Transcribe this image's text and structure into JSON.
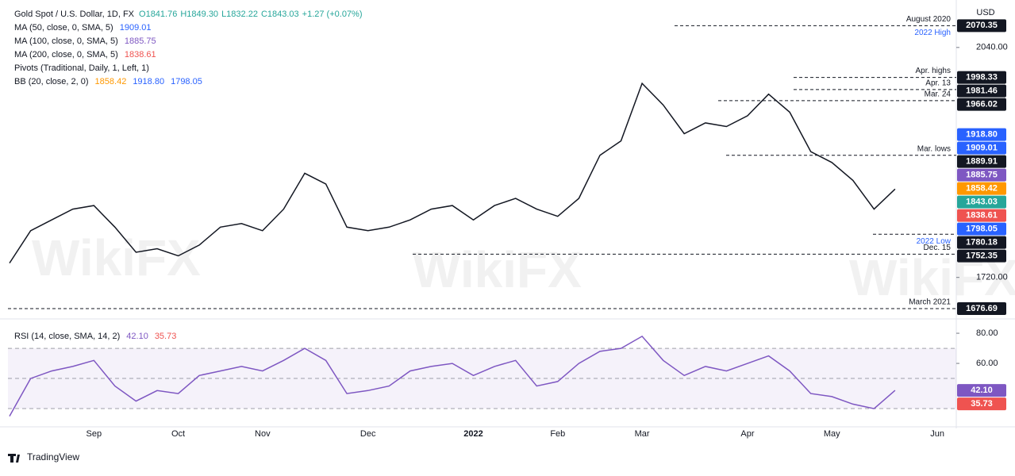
{
  "header": {
    "symbol": "Gold Spot / U.S. Dollar, 1D, FX",
    "ohlc": [
      "O1841.76",
      "H1849.30",
      "L1832.22",
      "C1843.03",
      "+1.27 (+0.07%)"
    ],
    "studies": [
      {
        "name": "MA (50, close, 0, SMA, 5)",
        "vals": [
          "1909.01"
        ],
        "colors": [
          "#2962ff"
        ]
      },
      {
        "name": "MA (100, close, 0, SMA, 5)",
        "vals": [
          "1885.75"
        ],
        "colors": [
          "#7e57c2"
        ]
      },
      {
        "name": "MA (200, close, 0, SMA, 5)",
        "vals": [
          "1838.61"
        ],
        "colors": [
          "#ef5350"
        ]
      },
      {
        "name": "Pivots (Traditional, Daily, 1, Left, 1)",
        "vals": [],
        "colors": []
      },
      {
        "name": "BB (20, close, 2, 0)",
        "vals": [
          "1858.42",
          "1918.80",
          "1798.05"
        ],
        "colors": [
          "#ff9800",
          "#2962ff",
          "#2962ff"
        ]
      }
    ],
    "currency": "USD",
    "footer": "TradingView",
    "watermarks": [
      "WikiFX",
      "WikiFX",
      "WikiFX"
    ]
  },
  "chart_data": [
    {
      "type": "line",
      "color": "#131722",
      "categories": [
        null,
        null,
        null,
        null,
        "Sep",
        null,
        null,
        null,
        "Oct",
        null,
        null,
        null,
        "Nov",
        null,
        null,
        null,
        null,
        "Dec",
        null,
        null,
        null,
        null,
        "2022",
        null,
        null,
        null,
        "Feb",
        null,
        null,
        null,
        "Mar",
        null,
        null,
        null,
        null,
        "Apr",
        null,
        null,
        null,
        "May",
        null,
        null,
        null,
        null,
        "Jun"
      ],
      "values": [
        1740,
        1785,
        1800,
        1815,
        1820,
        1790,
        1755,
        1760,
        1750,
        1765,
        1790,
        1795,
        1785,
        1815,
        1865,
        1850,
        1790,
        1785,
        1790,
        1800,
        1815,
        1820,
        1800,
        1820,
        1830,
        1815,
        1805,
        1830,
        1890,
        1910,
        1990,
        1960,
        1920,
        1935,
        1930,
        1945,
        1975,
        1950,
        1895,
        1880,
        1855,
        1815,
        1843.03,
        null,
        null
      ],
      "ylim": [
        1670,
        2095
      ],
      "yticks": [
        {
          "value": 2040,
          "label": "2040.00"
        },
        {
          "value": 1720,
          "label": "1720.00"
        }
      ],
      "levels": [
        {
          "value": 2070.35,
          "notes": [
            "August 2020",
            "2022 High"
          ]
        },
        {
          "value": 1998.33,
          "notes": [
            "Apr. highs"
          ]
        },
        {
          "value": 1981.46,
          "notes": [
            "Apr. 13"
          ]
        },
        {
          "value": 1966.02,
          "notes": [
            "Mar. 24"
          ]
        },
        {
          "value": 1889.91,
          "notes": [
            "Mar. lows"
          ]
        },
        {
          "value": 1780.18,
          "notes": [
            "2022 Low"
          ]
        },
        {
          "value": 1752.35,
          "notes": [
            "Dec. 15"
          ]
        },
        {
          "value": 1676.69,
          "notes": [
            "March 2021"
          ]
        }
      ],
      "axis_labels": [
        {
          "value": 1918.8,
          "label": "1918.80",
          "color": "#2962ff"
        },
        {
          "value": 1909.01,
          "color": "#2962ff"
        },
        {
          "value": 1885.75,
          "color": "#7e57c2"
        },
        {
          "value": 1858.42,
          "color": "#ff9800"
        },
        {
          "value": 1843.03,
          "color": "#26a69a"
        },
        {
          "value": 1838.61,
          "color": "#ef5350"
        },
        {
          "value": 1798.05,
          "color": "#2962ff"
        }
      ]
    },
    {
      "type": "line",
      "title": "RSI (14, close, SMA, 14, 2)",
      "title_vals": [
        "42.10",
        "35.73"
      ],
      "color": "#7e57c2",
      "values": [
        25,
        50,
        55,
        58,
        62,
        45,
        35,
        42,
        40,
        52,
        55,
        58,
        55,
        62,
        70,
        62,
        40,
        42,
        45,
        55,
        58,
        60,
        52,
        58,
        62,
        45,
        48,
        60,
        68,
        70,
        78,
        62,
        52,
        58,
        55,
        60,
        65,
        55,
        40,
        38,
        33,
        30,
        42.1,
        null,
        null
      ],
      "ylim": [
        19.5,
        85.3
      ],
      "yticks": [
        {
          "value": 80,
          "label": "80.00"
        },
        {
          "value": 60,
          "label": "60.00"
        }
      ],
      "bands": [
        70,
        50,
        30
      ],
      "axis_labels": [
        {
          "value": 42.1,
          "label": "42.10",
          "color": "#7e57c2"
        },
        {
          "value": 35.73,
          "color": "#ef5350"
        }
      ]
    }
  ]
}
